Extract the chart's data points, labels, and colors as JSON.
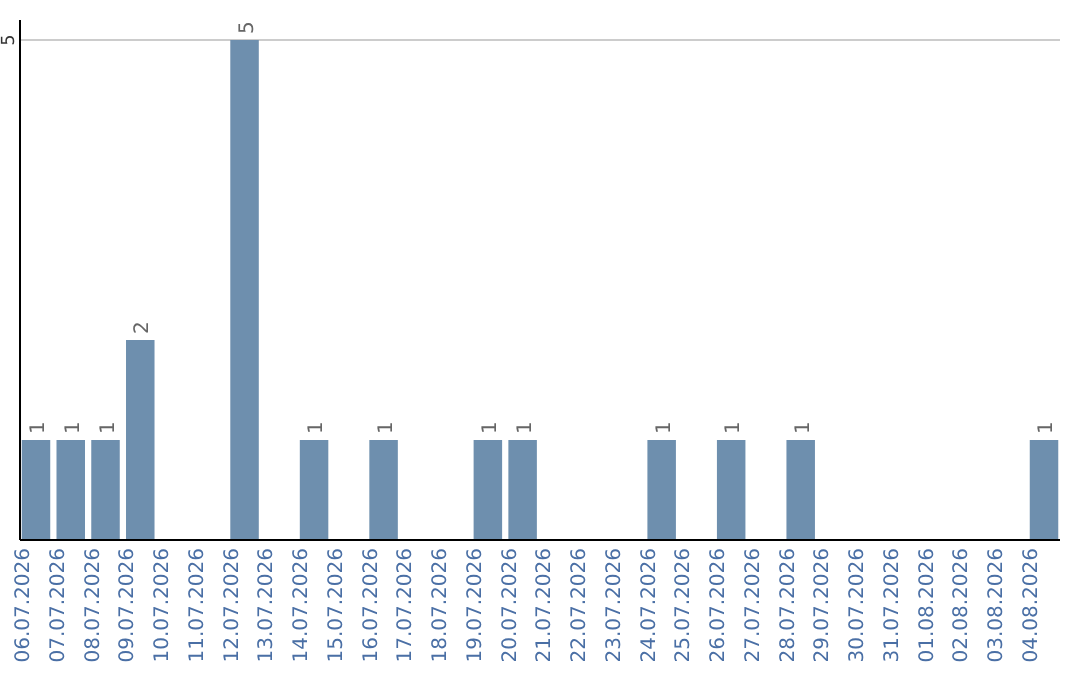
{
  "chart_data": {
    "type": "bar",
    "categories": [
      "06.07.2026",
      "07.07.2026",
      "08.07.2026",
      "09.07.2026",
      "10.07.2026",
      "11.07.2026",
      "12.07.2026",
      "13.07.2026",
      "14.07.2026",
      "15.07.2026",
      "16.07.2026",
      "17.07.2026",
      "18.07.2026",
      "19.07.2026",
      "20.07.2026",
      "21.07.2026",
      "22.07.2026",
      "23.07.2026",
      "24.07.2026",
      "25.07.2026",
      "26.07.2026",
      "27.07.2026",
      "28.07.2026",
      "29.07.2026",
      "30.07.2026",
      "31.07.2026",
      "01.08.2026",
      "02.08.2026",
      "03.08.2026",
      "04.08.2026"
    ],
    "values": [
      1,
      1,
      1,
      2,
      0,
      0,
      5,
      0,
      1,
      0,
      1,
      0,
      0,
      1,
      1,
      0,
      0,
      0,
      1,
      0,
      1,
      0,
      1,
      0,
      0,
      0,
      0,
      0,
      0,
      1
    ],
    "value_labels": [
      "1",
      "1",
      "1",
      "2",
      null,
      null,
      "5",
      null,
      "1",
      null,
      "1",
      null,
      null,
      "1",
      "1",
      null,
      null,
      null,
      "1",
      null,
      "1",
      null,
      "1",
      null,
      null,
      null,
      null,
      null,
      null,
      "1"
    ],
    "color": "#6e8fae",
    "ylim": [
      0,
      5.2
    ],
    "yticks": [
      5
    ],
    "grid": "y"
  }
}
